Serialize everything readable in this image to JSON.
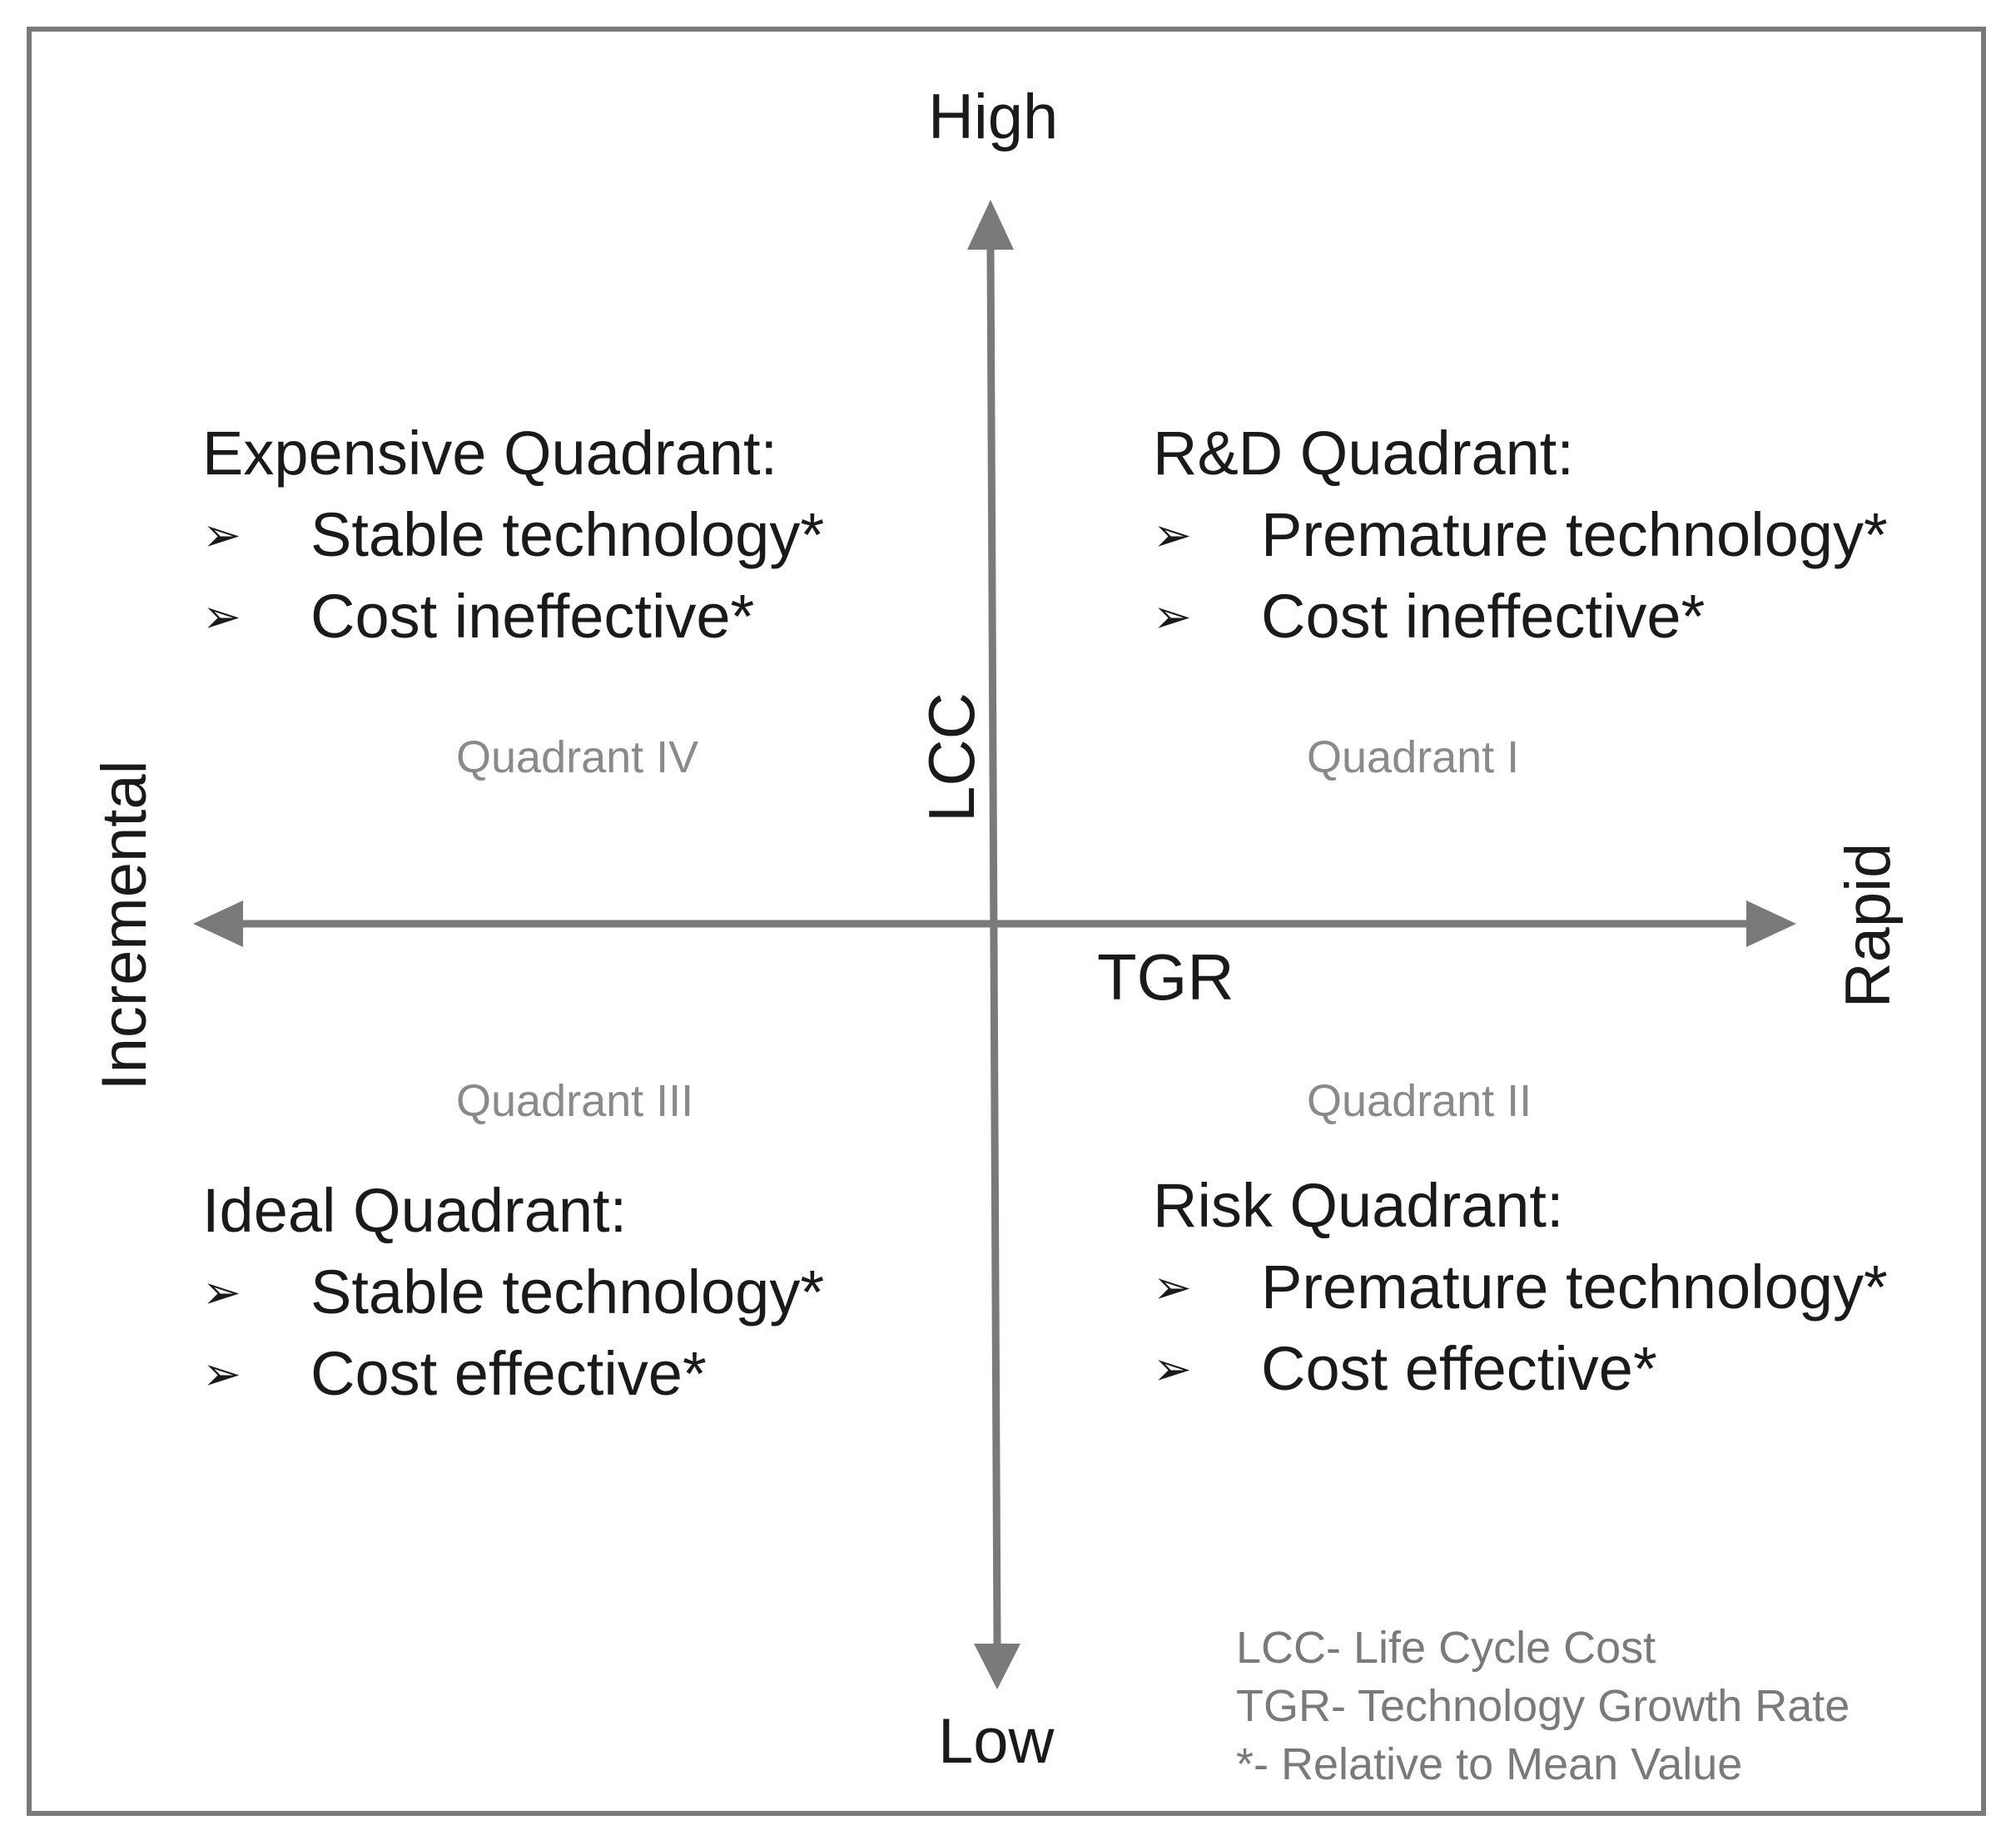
{
  "axes": {
    "vertical_top": "High",
    "vertical_bottom": "Low",
    "vertical_title": "LCC",
    "horizontal_left": "Incremental",
    "horizontal_right": "Rapid",
    "horizontal_title": "TGR",
    "axis_color": "#7a7a7a"
  },
  "quadrants": {
    "top_left": {
      "number": "Quadrant IV",
      "title": "Expensive Quadrant:",
      "bullets": [
        "Stable technology*",
        "Cost ineffective*"
      ]
    },
    "top_right": {
      "number": "Quadrant I",
      "title": "R&D Quadrant:",
      "bullets": [
        "Premature technology*",
        "Cost ineffective*"
      ]
    },
    "bottom_left": {
      "number": "Quadrant III",
      "title": "Ideal Quadrant:",
      "bullets": [
        "Stable technology*",
        "Cost effective*"
      ]
    },
    "bottom_right": {
      "number": "Quadrant II",
      "title": "Risk Quadrant:",
      "bullets": [
        "Premature technology*",
        "Cost effective*"
      ]
    }
  },
  "bullet_symbol": "➢",
  "legend": [
    "LCC- Life Cycle Cost",
    "TGR- Technology Growth Rate",
    "*- Relative to Mean Value"
  ]
}
